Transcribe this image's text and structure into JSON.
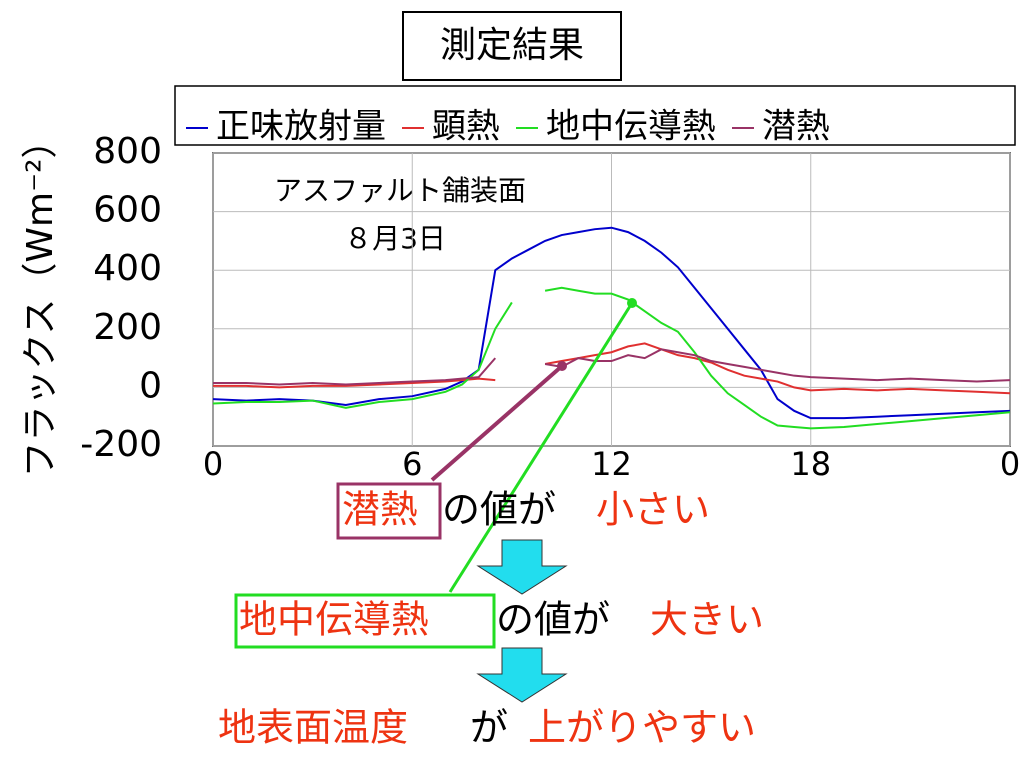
{
  "chart_data": {
    "type": "line",
    "title": "測定結果",
    "ylabel": "フラックス（Wm⁻²）",
    "annotations": [
      "アスファルト舗装面",
      "８月3日"
    ],
    "x": [
      0,
      1,
      2,
      3,
      4,
      5,
      6,
      7,
      7.5,
      8,
      8.5,
      9,
      9.5,
      10,
      10.5,
      11,
      11.5,
      12,
      12.5,
      13,
      13.5,
      14,
      14.5,
      15,
      15.5,
      16,
      16.5,
      17,
      17.5,
      18,
      19,
      20,
      21,
      22,
      23,
      24
    ],
    "series": [
      {
        "name": "正味放射量",
        "color": "#0000cc",
        "values": [
          -40,
          -45,
          -40,
          -45,
          -60,
          -40,
          -30,
          -5,
          20,
          60,
          400,
          440,
          470,
          500,
          520,
          530,
          540,
          545,
          530,
          500,
          460,
          410,
          340,
          270,
          200,
          130,
          60,
          -40,
          -80,
          -105,
          -105,
          -100,
          -95,
          -90,
          -85,
          -80
        ]
      },
      {
        "name": "顕熱",
        "color": "#e03030",
        "values": [
          5,
          5,
          0,
          5,
          5,
          10,
          15,
          20,
          25,
          30,
          25,
          null,
          null,
          80,
          90,
          100,
          110,
          120,
          140,
          150,
          130,
          110,
          100,
          85,
          60,
          40,
          30,
          20,
          0,
          -10,
          -5,
          -10,
          -5,
          -10,
          -15,
          -20
        ]
      },
      {
        "name": "地中伝導熱",
        "color": "#22dd22",
        "values": [
          -55,
          -50,
          -50,
          -45,
          -70,
          -50,
          -40,
          -15,
          10,
          60,
          200,
          290,
          null,
          330,
          340,
          330,
          320,
          320,
          300,
          260,
          220,
          190,
          120,
          40,
          -20,
          -60,
          -100,
          -130,
          -135,
          -140,
          -135,
          -125,
          -115,
          -105,
          -95,
          -85
        ]
      },
      {
        "name": "潜熱",
        "color": "#993366",
        "values": [
          15,
          15,
          10,
          15,
          10,
          15,
          20,
          25,
          30,
          35,
          100,
          null,
          null,
          80,
          70,
          100,
          90,
          90,
          110,
          100,
          130,
          120,
          110,
          90,
          80,
          70,
          60,
          50,
          40,
          35,
          30,
          25,
          30,
          25,
          20,
          25
        ]
      }
    ],
    "xlim": [
      0,
      24
    ],
    "xticks": [
      0,
      6,
      12,
      18,
      {
        "value": 24,
        "label": "0"
      }
    ],
    "ylim": [
      -200,
      800
    ],
    "yticks": [
      -200,
      0,
      200,
      400,
      600,
      800
    ],
    "grid": true
  },
  "conclusion": [
    [
      "潜熱",
      "の値が",
      "小さい"
    ],
    [
      "地中伝導熱",
      "の値が",
      "大きい"
    ],
    [
      "地表面温度",
      "が",
      "上がりやすい"
    ]
  ]
}
